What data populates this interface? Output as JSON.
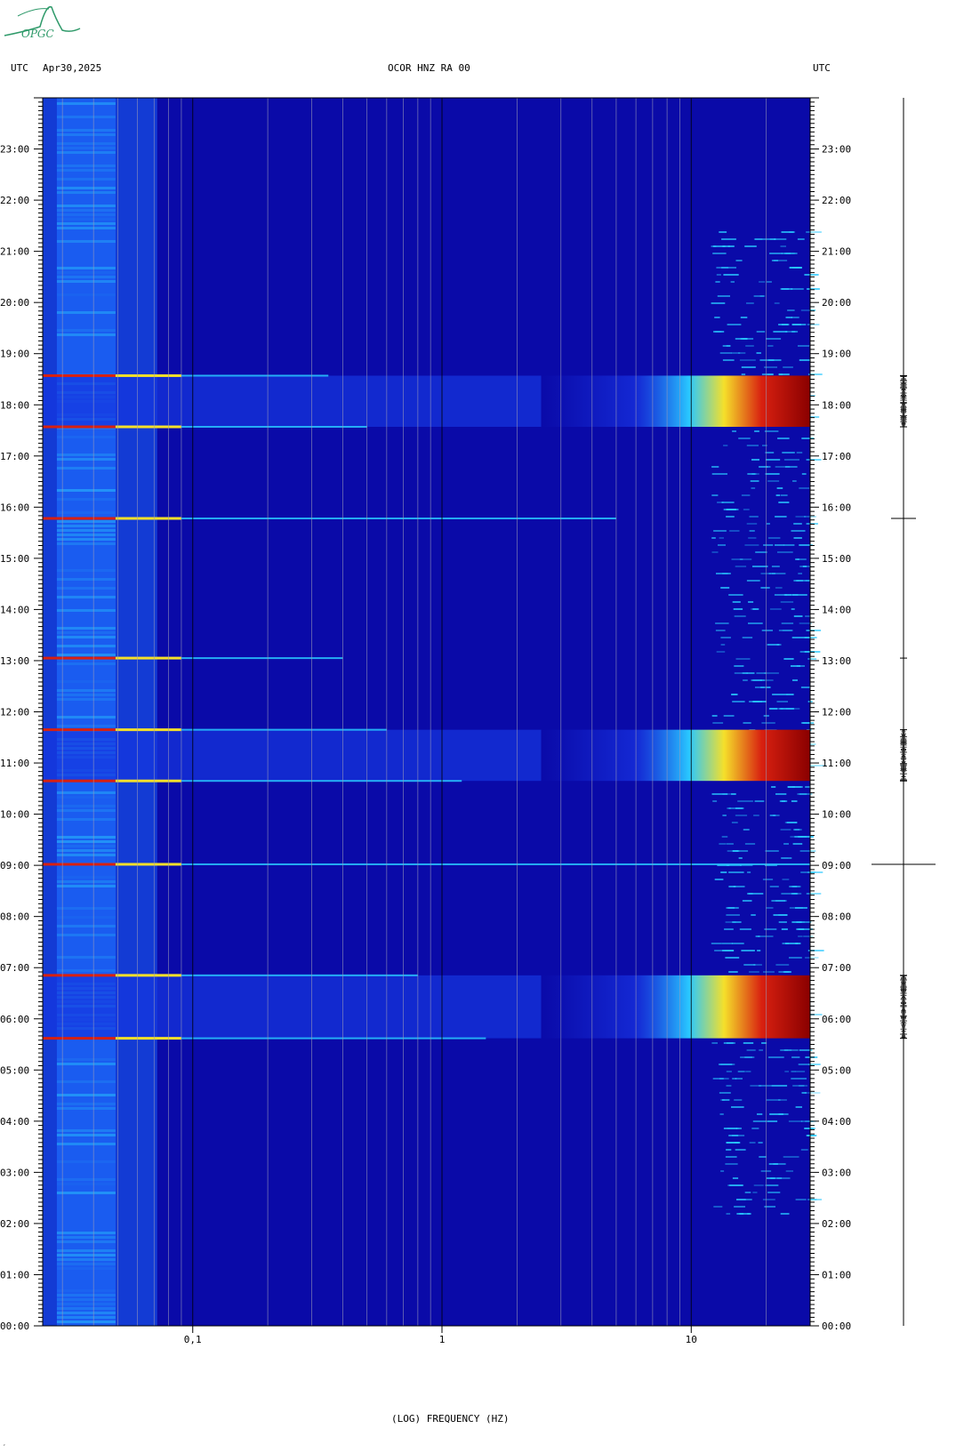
{
  "header": {
    "left_utc": "UTC",
    "date": "Apr30,2025",
    "station": "OCOR HNZ RA 00",
    "right_utc": "UTC"
  },
  "logo": {
    "text": "OPGC",
    "color": "#2f9a6a"
  },
  "footer": {
    "mark": "‘"
  },
  "chart_data": {
    "type": "heatmap",
    "title": "",
    "xlabel": "(LOG) FREQUENCY (HZ)",
    "ylabel": "",
    "x_scale": "log",
    "xlim": [
      0.025,
      30
    ],
    "x_ticks": [
      {
        "value": 0.1,
        "label": "0,1"
      },
      {
        "value": 1,
        "label": "1"
      },
      {
        "value": 10,
        "label": "10"
      }
    ],
    "ylim": [
      0,
      24
    ],
    "y_ticks": [
      "00:00",
      "01:00",
      "02:00",
      "03:00",
      "04:00",
      "05:00",
      "06:00",
      "07:00",
      "08:00",
      "09:00",
      "10:00",
      "11:00",
      "12:00",
      "13:00",
      "14:00",
      "15:00",
      "16:00",
      "17:00",
      "18:00",
      "19:00",
      "20:00",
      "21:00",
      "22:00",
      "23:00"
    ],
    "colors": {
      "background": "#0a0aa8",
      "low_freq_band": "#1a5cf0",
      "bright": "#29c8ff",
      "line": "#f5e02a",
      "hot": "#d82010",
      "saturated": "#8a0000"
    },
    "events": [
      {
        "start_hour": 5.62,
        "end_hour": 6.85,
        "intensity": "strong"
      },
      {
        "start_hour": 10.65,
        "end_hour": 11.65,
        "intensity": "strong"
      },
      {
        "start_hour": 17.57,
        "end_hour": 18.57,
        "intensity": "strong"
      }
    ],
    "lines": [
      {
        "hour": 5.62,
        "fmax_hz": 1.5
      },
      {
        "hour": 6.85,
        "fmax_hz": 0.8
      },
      {
        "hour": 9.02,
        "fmax_hz": 30
      },
      {
        "hour": 10.65,
        "fmax_hz": 1.2
      },
      {
        "hour": 11.65,
        "fmax_hz": 0.6
      },
      {
        "hour": 13.05,
        "fmax_hz": 0.4
      },
      {
        "hour": 15.78,
        "fmax_hz": 5.0
      },
      {
        "hour": 17.57,
        "fmax_hz": 0.5
      },
      {
        "hour": 18.57,
        "fmax_hz": 0.35
      }
    ]
  }
}
